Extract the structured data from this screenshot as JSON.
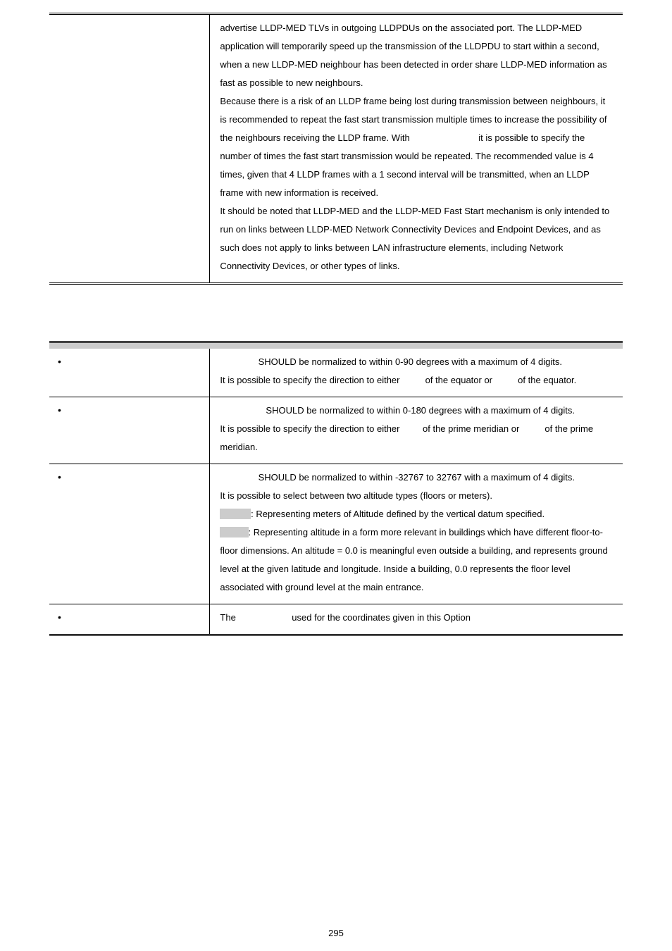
{
  "page_number": "295",
  "table1": {
    "col1": "",
    "body": {
      "p1": "advertise LLDP-MED TLVs in outgoing LLDPDUs on the associated port. The LLDP-MED application will temporarily speed up the transmission of the LLDPDU to start within a second, when a new LLDP-MED neighbour has been detected in order share LLDP-MED information as fast as possible to new neighbours.",
      "p2_a": "Because there is a risk of an LLDP frame being lost during transmission between neighbours, it is recommended to repeat the fast start transmission multiple times to increase the possibility of the neighbours receiving the LLDP frame. With ",
      "p2_b": " it is possible to specify the number of times the fast start transmission would be repeated. The recommended value is 4 times, given that 4 LLDP frames with a 1 second interval will be transmitted, when an LLDP frame with new information is received.",
      "p3": "It should be noted that LLDP-MED and the LLDP-MED Fast Start mechanism is only intended to run on links between LLDP-MED Network Connectivity Devices and Endpoint Devices, and as such does not apply to links between LAN infrastructure elements, including Network Connectivity Devices, or other types of links."
    }
  },
  "table2": {
    "header": {
      "c1": "",
      "c2": ""
    },
    "rows": [
      {
        "label": "",
        "text_a": "",
        "text_b": " SHOULD be normalized to within 0-90 degrees with a maximum of 4 digits.",
        "text_c": "It is possible to specify the direction to either ",
        "text_d": " of the equator or ",
        "text_e": " of the equator."
      },
      {
        "label": "",
        "text_a": "",
        "text_b": " SHOULD be normalized to within 0-180 degrees with a maximum of 4 digits.",
        "text_c": "It is possible to specify the direction to either ",
        "text_d": " of the prime meridian or ",
        "text_e": " of the prime meridian."
      },
      {
        "label": "",
        "alt_a": "",
        "alt_b": " SHOULD be normalized to within -32767 to 32767 with a maximum of 4 digits.",
        "alt_c": "It is possible to select between two altitude types (floors or meters).",
        "meters_lbl": "",
        "meters_txt": ": Representing meters of Altitude defined by the vertical datum specified.",
        "floors_lbl": "",
        "floors_txt": ": Representing altitude in a form more relevant in buildings which have different floor-to-floor dimensions. An altitude = 0.0 is meaningful even outside a building, and represents ground level at the given latitude and longitude. Inside a building, 0.0 represents the floor level associated with ground level at the main entrance."
      },
      {
        "label": "",
        "md_a": "The ",
        "md_b": " used for the coordinates given in this Option"
      }
    ]
  }
}
